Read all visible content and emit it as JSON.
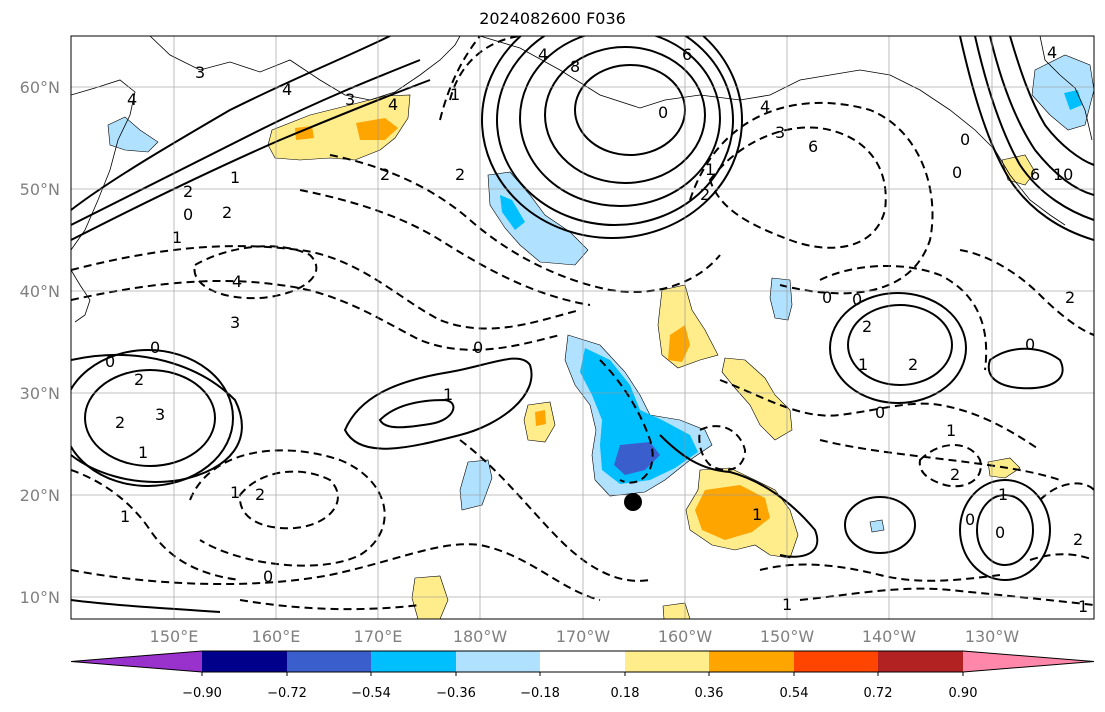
{
  "title": "2024082600 F036",
  "map": {
    "projection": "cylindrical",
    "lon_range": [
      "140°E",
      "120°W"
    ],
    "lat_range": [
      "8°N",
      "65°N"
    ],
    "grid": true,
    "lat_labels": [
      "60°N",
      "50°N",
      "40°N",
      "30°N",
      "20°N",
      "10°N"
    ],
    "lon_labels": [
      "150°E",
      "160°E",
      "170°E",
      "180°W",
      "170°W",
      "160°W",
      "150°W",
      "140°W",
      "130°W"
    ],
    "marker": {
      "label": "storm-center",
      "lat": 19.4,
      "lon": "165°W"
    },
    "contour_labels": [
      "3",
      "4",
      "4",
      "3",
      "4",
      "1",
      "2",
      "1",
      "0",
      "2",
      "2",
      "1",
      "2",
      "4",
      "3",
      "0",
      "0",
      "2",
      "3",
      "2",
      "1",
      "0",
      "1",
      "1",
      "1",
      "2",
      "0",
      "4",
      "8",
      "0",
      "6",
      "6",
      "1",
      "2",
      "3",
      "4",
      "0",
      "6",
      "0",
      "10",
      "4",
      "2",
      "0",
      "0",
      "1",
      "2",
      "2",
      "2",
      "0",
      "0",
      "1",
      "1",
      "1",
      "2",
      "0",
      "0",
      "1",
      "1"
    ],
    "shading": {
      "negative_regions": [
        "west-of-hawaii",
        "gulf-of-alaska-south",
        "kamchatka",
        "east-bc",
        "hawaii-west-small",
        "central-30N",
        "145W-40N",
        "140W-15N"
      ],
      "positive_regions": [
        "kuril-aleutian",
        "161W-35N",
        "175W-28N",
        "158W-18N",
        "154W-30N",
        "185W-10N",
        "133W-22N",
        "130W-52N",
        "162W-9N"
      ]
    }
  },
  "colorbar": {
    "ticks": [
      "−0.90",
      "−0.72",
      "−0.54",
      "−0.36",
      "−0.18",
      "0.18",
      "0.36",
      "0.54",
      "0.72",
      "0.90"
    ],
    "colors": [
      "#9932cc",
      "#00008b",
      "#3a5fcd",
      "#00bfff",
      "#b0e2ff",
      "#ffffff",
      "#ffec8b",
      "#ffa500",
      "#ff4500",
      "#b22222",
      "#ff88aa"
    ]
  }
}
